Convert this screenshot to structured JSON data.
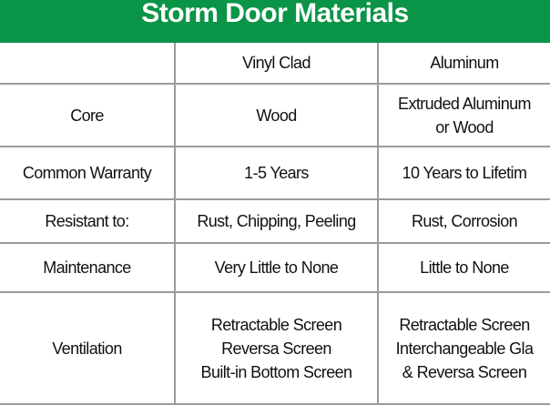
{
  "title": "Storm Door Materials",
  "colors": {
    "header_green": "#0a9447",
    "grid_line": "#9a9a9a"
  },
  "columns": [
    "",
    "Vinyl Clad",
    "Aluminum"
  ],
  "rows": [
    {
      "label": "Core",
      "vinyl_clad": "Wood",
      "aluminum": "Extruded Aluminum\nor Wood"
    },
    {
      "label": "Common Warranty",
      "vinyl_clad": "1-5 Years",
      "aluminum": "10 Years to Lifetim"
    },
    {
      "label": "Resistant to:",
      "vinyl_clad": "Rust, Chipping, Peeling",
      "aluminum": "Rust, Corrosion"
    },
    {
      "label": "Maintenance",
      "vinyl_clad": "Very Little to None",
      "aluminum": "Little to None"
    },
    {
      "label": "Ventilation",
      "vinyl_clad": "Retractable Screen\nReversa Screen\nBuilt-in Bottom Screen",
      "aluminum": "Retractable Screen\nInterchangeable Gla\n& Reversa Screen"
    }
  ]
}
